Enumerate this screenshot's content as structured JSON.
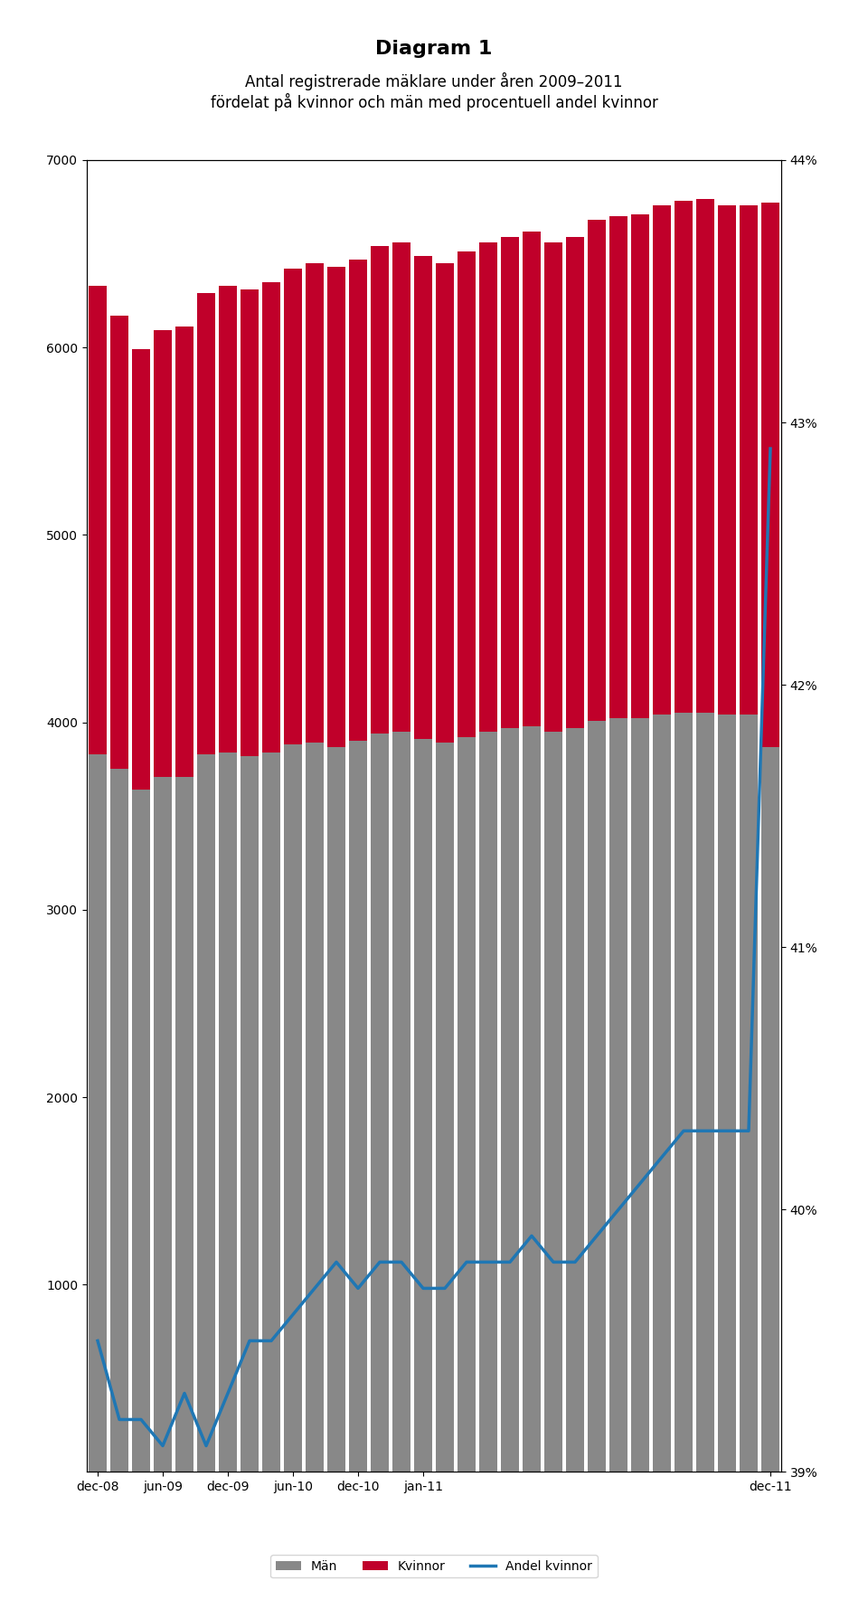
{
  "chart_data": {
    "type": "bar",
    "title": "Diagram 1",
    "subtitle": "Antal registrerade mäklare under åren 2009–2011\nfördelat på kvinnor och män med procentuell andel kvinnor",
    "categories": [
      "dec-08",
      null,
      null,
      "jun-09",
      null,
      null,
      "dec-09",
      null,
      null,
      "jun-10",
      null,
      null,
      "dec-10",
      null,
      null,
      "jan-11",
      null,
      null,
      null,
      null,
      null,
      null,
      null,
      null,
      null,
      null,
      null,
      null,
      null,
      null,
      null,
      "dec-11"
    ],
    "stacked": true,
    "series": [
      {
        "name": "Män",
        "color": "#888888",
        "values": [
          3830,
          3750,
          3640,
          3710,
          3710,
          3830,
          3840,
          3820,
          3840,
          3880,
          3890,
          3870,
          3900,
          3940,
          3950,
          3910,
          3890,
          3920,
          3950,
          3970,
          3980,
          3950,
          3970,
          4010,
          4020,
          4020,
          4040,
          4050,
          4050,
          4040,
          4040,
          3867
        ]
      },
      {
        "name": "Kvinnor",
        "color": "#c0002a",
        "values": [
          2500,
          2420,
          2350,
          2380,
          2400,
          2460,
          2490,
          2490,
          2510,
          2540,
          2560,
          2560,
          2570,
          2600,
          2610,
          2580,
          2560,
          2590,
          2610,
          2620,
          2640,
          2610,
          2620,
          2670,
          2680,
          2690,
          2720,
          2730,
          2740,
          2720,
          2720,
          2905
        ]
      },
      {
        "name": "Andel kvinnor",
        "type": "line",
        "axis": "y2",
        "values": [
          39.5,
          39.2,
          39.2,
          39.1,
          39.3,
          39.1,
          39.3,
          39.5,
          39.5,
          39.6,
          39.7,
          39.8,
          39.7,
          39.8,
          39.8,
          39.7,
          39.7,
          39.8,
          39.8,
          39.8,
          39.9,
          39.8,
          39.8,
          39.9,
          40.0,
          40.1,
          40.2,
          40.3,
          40.3,
          40.3,
          40.3,
          42.9
        ]
      }
    ],
    "ylim": [
      0,
      7000
    ],
    "yticks": [
      1000,
      2000,
      3000,
      4000,
      5000,
      6000,
      7000
    ],
    "y2lim": [
      39,
      44
    ],
    "y2ticks": [
      {
        "value": 39,
        "label": "39%"
      },
      {
        "value": 40,
        "label": "40%"
      },
      {
        "value": 41,
        "label": "41%"
      },
      {
        "value": 42,
        "label": "42%"
      },
      {
        "value": 43,
        "label": "43%"
      },
      {
        "value": 44,
        "label": "44%"
      }
    ],
    "legend": "lower center"
  }
}
